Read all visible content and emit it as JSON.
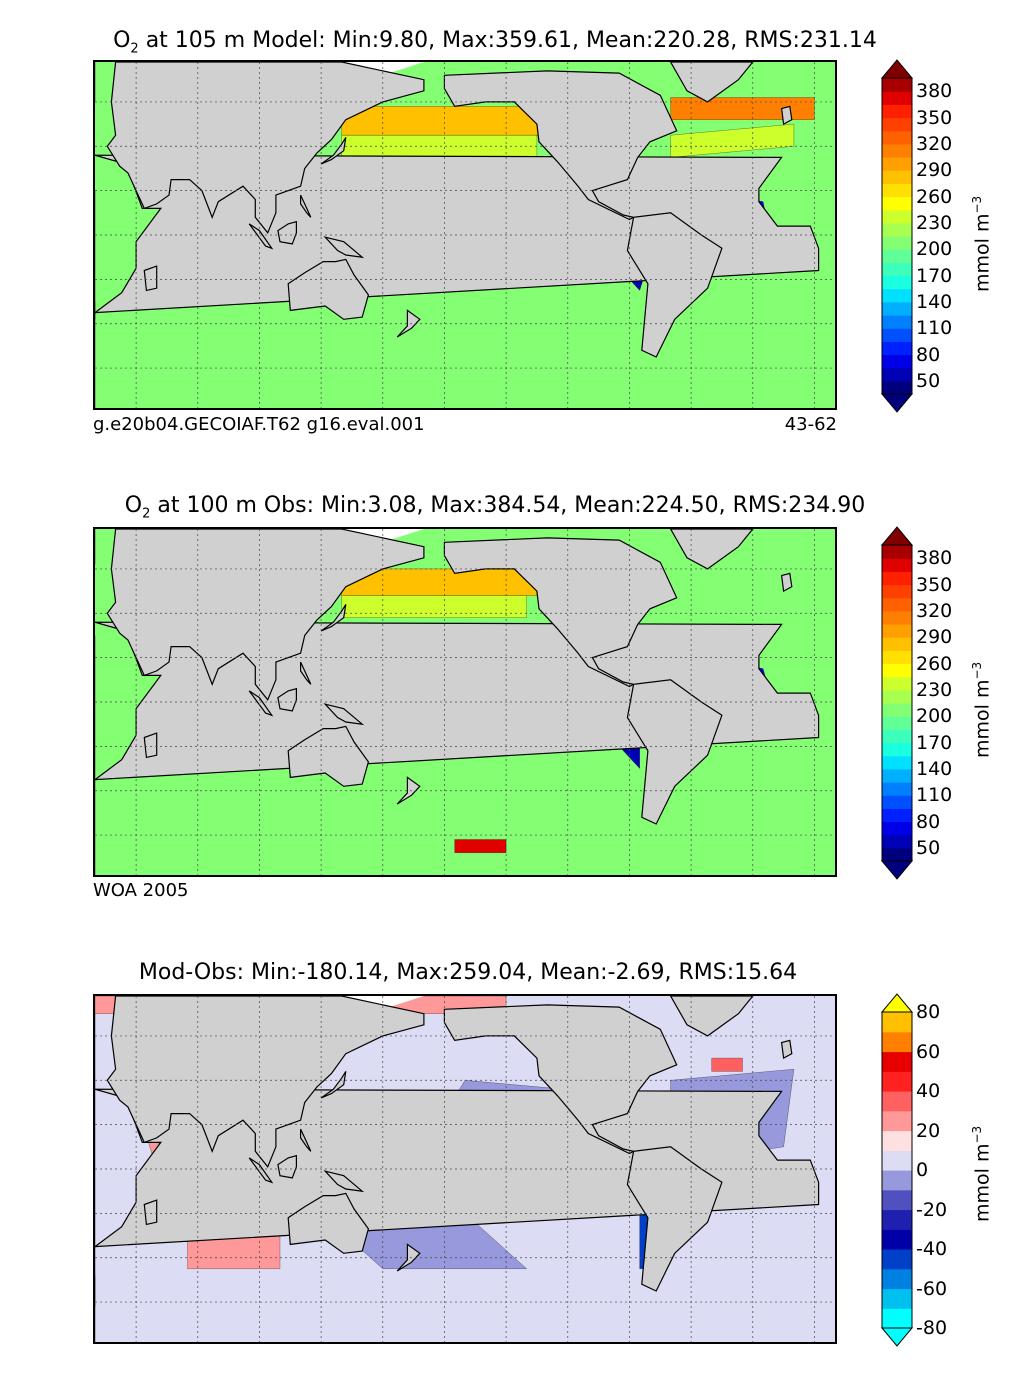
{
  "panels": [
    {
      "id": "model",
      "species": "O",
      "species_sub": "2",
      "title_rest": "at 105 m Model: Min:9.80, Max:359.61, Mean:220.28, RMS:231.14",
      "note_left": "g.e20b04.GECOIAF.T62 g16.eval.001",
      "note_right": "43-62"
    },
    {
      "id": "obs",
      "species": "O",
      "species_sub": "2",
      "title_rest": "at 100 m Obs: Min:3.08, Max:384.54, Mean:224.50, RMS:234.90",
      "note_left": "WOA 2005",
      "note_right": ""
    },
    {
      "id": "diff",
      "species": "",
      "species_sub": "",
      "title_rest": "Mod-Obs: Min:-180.14, Max:259.04, Mean:-2.69, RMS:15.64",
      "note_left": "",
      "note_right": ""
    }
  ],
  "units": {
    "text": "mmol m",
    "sup": "−3"
  },
  "chart_data": [
    {
      "type": "heatmap",
      "title": "O2 at 105 m Model: Min:9.80, Max:359.61, Mean:220.28, RMS:231.14",
      "variable": "O2",
      "depth_m": 105,
      "stats": {
        "min": 9.8,
        "max": 359.61,
        "mean": 220.28,
        "rms": 231.14
      },
      "colorbar": {
        "levels": [
          35,
          50,
          65,
          80,
          95,
          110,
          125,
          140,
          155,
          170,
          185,
          200,
          215,
          230,
          245,
          260,
          275,
          290,
          305,
          320,
          335,
          350,
          365,
          380,
          395
        ],
        "colors": [
          "#00007f",
          "#0000b4",
          "#0000e8",
          "#0020ff",
          "#0050ff",
          "#0080ff",
          "#00b0ff",
          "#00e0ff",
          "#1affe0",
          "#3cffbc",
          "#60ff98",
          "#84ff74",
          "#a8ff50",
          "#ccff2c",
          "#ffff00",
          "#ffe000",
          "#ffc000",
          "#ffa000",
          "#ff8000",
          "#ff6000",
          "#ff4000",
          "#ff2000",
          "#e00000",
          "#a80000"
        ],
        "under_color": "#00007f",
        "over_color": "#800000",
        "tick_labels": [
          "50",
          "80",
          "110",
          "140",
          "170",
          "200",
          "230",
          "260",
          "290",
          "320",
          "350",
          "380"
        ],
        "label": "mmol m-3"
      },
      "annotations": [
        "g.e20b04.GECOIAF.T62 g16.eval.001",
        "43-62"
      ]
    },
    {
      "type": "heatmap",
      "title": "O2 at 100 m Obs: Min:3.08, Max:384.54, Mean:224.50, RMS:234.90",
      "variable": "O2",
      "depth_m": 100,
      "stats": {
        "min": 3.08,
        "max": 384.54,
        "mean": 224.5,
        "rms": 234.9
      },
      "colorbar": {
        "levels": [
          35,
          50,
          65,
          80,
          95,
          110,
          125,
          140,
          155,
          170,
          185,
          200,
          215,
          230,
          245,
          260,
          275,
          290,
          305,
          320,
          335,
          350,
          365,
          380,
          395
        ],
        "colors": [
          "#00007f",
          "#0000b4",
          "#0000e8",
          "#0020ff",
          "#0050ff",
          "#0080ff",
          "#00b0ff",
          "#00e0ff",
          "#1affe0",
          "#3cffbc",
          "#60ff98",
          "#84ff74",
          "#a8ff50",
          "#ccff2c",
          "#ffff00",
          "#ffe000",
          "#ffc000",
          "#ffa000",
          "#ff8000",
          "#ff6000",
          "#ff4000",
          "#ff2000",
          "#e00000",
          "#a80000"
        ],
        "under_color": "#00007f",
        "over_color": "#800000",
        "tick_labels": [
          "50",
          "80",
          "110",
          "140",
          "170",
          "200",
          "230",
          "260",
          "290",
          "320",
          "350",
          "380"
        ],
        "label": "mmol m-3"
      },
      "annotations": [
        "WOA 2005"
      ]
    },
    {
      "type": "heatmap",
      "title": "Mod-Obs: Min:-180.14, Max:259.04, Mean:-2.69, RMS:15.64",
      "variable": "O2 difference",
      "stats": {
        "min": -180.14,
        "max": 259.04,
        "mean": -2.69,
        "rms": 15.64
      },
      "colorbar": {
        "levels": [
          -80,
          -70,
          -60,
          -50,
          -40,
          -30,
          -20,
          -10,
          0,
          10,
          20,
          30,
          40,
          50,
          60,
          70,
          80
        ],
        "colors": [
          "#00ffff",
          "#00c0f0",
          "#0080e0",
          "#0040c8",
          "#0000a8",
          "#2020b0",
          "#5050c0",
          "#9898dc",
          "#dcdcf4",
          "#ffe0e0",
          "#ff9898",
          "#ff6060",
          "#ff2020",
          "#e80000",
          "#ff8000",
          "#ffc000"
        ],
        "under_color": "#00ffff",
        "over_color": "#ffff00",
        "tick_labels": [
          "-80",
          "-60",
          "-40",
          "-20",
          "0",
          "20",
          "40",
          "60",
          "80"
        ],
        "label": "mmol m-3"
      },
      "annotations": []
    }
  ]
}
